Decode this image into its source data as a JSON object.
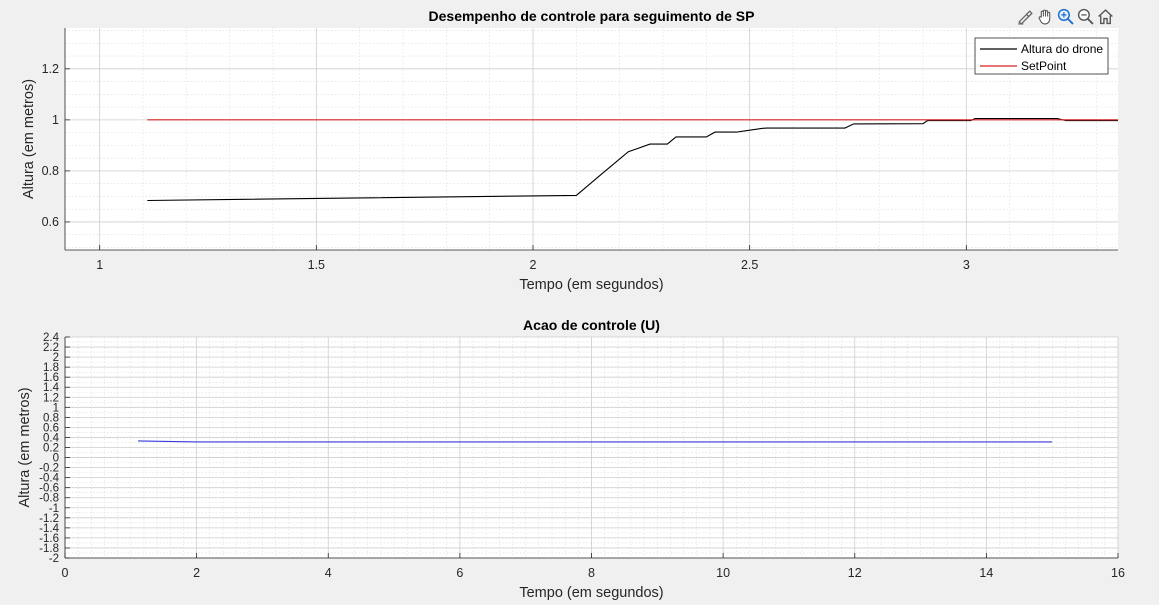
{
  "toolbar": {
    "icons": [
      "brush-icon",
      "pan-hand-icon",
      "zoom-in-icon",
      "zoom-out-icon",
      "home-icon"
    ],
    "accent": "#1f6fd1"
  },
  "chart_data": [
    {
      "type": "line",
      "title": "Desempenho de controle para seguimento de SP",
      "xlabel": "Tempo (em segundos)",
      "ylabel": "Altura (em metros)",
      "xlim": [
        0.92,
        3.35
      ],
      "ylim": [
        0.49,
        1.36
      ],
      "xticks": [
        1,
        1.5,
        2,
        2.5,
        3
      ],
      "xtick_labels": [
        "1",
        "1.5",
        "2",
        "2.5",
        "3"
      ],
      "yticks": [
        0.6,
        0.8,
        1,
        1.2
      ],
      "ytick_labels": [
        "0.6",
        "0.8",
        "1",
        "1.2"
      ],
      "grid": true,
      "minor_grid": true,
      "legend_location": "top-right",
      "series": [
        {
          "name": "Altura do drone",
          "color": "#000000",
          "x": [
            1.11,
            2.1,
            2.16,
            2.22,
            2.27,
            2.31,
            2.33,
            2.4,
            2.42,
            2.47,
            2.49,
            2.53,
            2.54,
            2.72,
            2.74,
            2.9,
            2.91,
            3.01,
            3.02,
            3.21,
            3.23,
            3.35
          ],
          "y": [
            0.684,
            0.704,
            0.79,
            0.875,
            0.905,
            0.905,
            0.933,
            0.933,
            0.952,
            0.952,
            0.957,
            0.967,
            0.968,
            0.968,
            0.984,
            0.985,
            0.997,
            0.997,
            1.005,
            1.005,
            0.997,
            0.997
          ]
        },
        {
          "name": "SetPoint",
          "color": "#d62020",
          "x": [
            1.11,
            3.35
          ],
          "y": [
            1.0,
            1.0
          ]
        }
      ]
    },
    {
      "type": "line",
      "title": "Acao de controle (U)",
      "xlabel": "Tempo (em segundos)",
      "ylabel": "Altura (em metros)",
      "xlim": [
        0,
        16
      ],
      "ylim": [
        -2,
        2.4
      ],
      "xticks": [
        0,
        2,
        4,
        6,
        8,
        10,
        12,
        14,
        16
      ],
      "xtick_labels": [
        "0",
        "2",
        "4",
        "6",
        "8",
        "10",
        "12",
        "14",
        "16"
      ],
      "yticks": [
        -2,
        -1.8,
        -1.6,
        -1.4,
        -1.2,
        -1,
        -0.8,
        -0.6,
        -0.4,
        -0.2,
        0,
        0.2,
        0.4,
        0.6,
        0.8,
        1,
        1.2,
        1.4,
        1.6,
        1.8,
        2,
        2.2,
        2.4
      ],
      "ytick_labels": [
        "-2",
        "-1.8",
        "-1.6",
        "-1.4",
        "-1.2",
        "-1",
        "-0.8",
        "-0.6",
        "-0.4",
        "-0.2",
        "0",
        "0.2",
        "0.4",
        "0.6",
        "0.8",
        "1",
        "1.2",
        "1.4",
        "1.6",
        "1.8",
        "2",
        "2.2",
        "2.4"
      ],
      "grid": true,
      "minor_grid": true,
      "series": [
        {
          "color": "#3a3ae0",
          "x": [
            1.11,
            2.0,
            15.0
          ],
          "y": [
            0.33,
            0.31,
            0.31
          ]
        }
      ]
    }
  ]
}
